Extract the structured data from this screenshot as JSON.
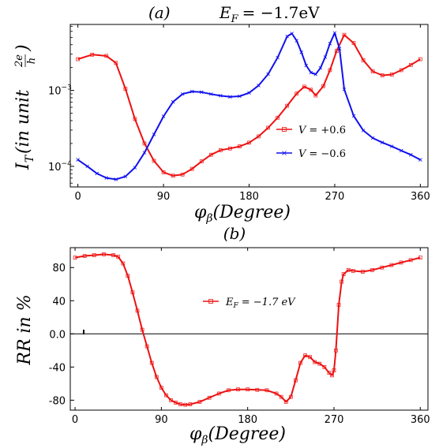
{
  "chart_data": [
    {
      "type": "line",
      "panel_label": "(a)",
      "title_lhs": "E",
      "title_lhs_sub": "F",
      "title_rhs": "= −1.7eV",
      "ylabel_main": "I",
      "ylabel_sub": "T",
      "ylabel_paren": "(in  unit",
      "ylabel_frac_num": "2e",
      "ylabel_frac_den": "h",
      "ylabel_close": ")",
      "xlabel_main": "φ",
      "xlabel_sub": "β",
      "xlabel_paren": "(Degree)",
      "y_scale": "log",
      "xlim": [
        -8,
        368
      ],
      "ylim": [
        5.35e-05,
        0.0074
      ],
      "xticks": [
        0,
        90,
        180,
        270,
        360
      ],
      "yticks": [
        {
          "value": 0.001,
          "base": "10",
          "exp": "−3"
        },
        {
          "value": 0.0001,
          "base": "10",
          "exp": "−4"
        }
      ],
      "legend_position": "center-right",
      "series": [
        {
          "name": "V = +0.6",
          "label_var": "V",
          "label_val": "= +0.6",
          "color": "#ee1111",
          "marker": "square",
          "x": [
            0,
            15,
            30,
            40,
            50,
            60,
            70,
            80,
            90,
            100,
            110,
            120,
            130,
            140,
            150,
            160,
            170,
            180,
            190,
            200,
            210,
            220,
            230,
            238,
            245,
            250,
            258,
            265,
            272,
            280,
            290,
            300,
            310,
            320,
            330,
            340,
            350,
            360
          ],
          "y": [
            0.00258,
            0.00296,
            0.00285,
            0.0023,
            0.00105,
            0.00042,
            0.0002,
            0.000118,
            8.35e-05,
            7.52e-05,
            7.8e-05,
            9.25e-05,
            0.000116,
            0.000142,
            0.000163,
            0.000172,
            0.000183,
            0.000205,
            0.000248,
            0.000322,
            0.000437,
            0.000628,
            0.000909,
            0.00112,
            0.00102,
            0.000858,
            0.00114,
            0.00185,
            0.0033,
            0.0054,
            0.0042,
            0.0025,
            0.00178,
            0.00158,
            0.00162,
            0.00185,
            0.00217,
            0.00258
          ]
        },
        {
          "name": "V = −0.6",
          "label_var": "V",
          "label_val": "= −0.6",
          "color": "#1111ee",
          "marker": "x",
          "x": [
            0,
            10,
            20,
            30,
            40,
            50,
            60,
            70,
            80,
            90,
            100,
            110,
            120,
            130,
            140,
            150,
            160,
            170,
            180,
            190,
            200,
            210,
            220,
            225,
            230,
            235,
            240,
            245,
            250,
            255,
            260,
            265,
            270,
            275,
            280,
            290,
            300,
            310,
            320,
            330,
            340,
            350,
            360
          ],
          "y": [
            0.000122,
            0.0001,
            8.05e-05,
            7.03e-05,
            6.73e-05,
            7.35e-05,
            9.62e-05,
            0.000151,
            0.000263,
            0.000455,
            0.000706,
            0.000896,
            0.000966,
            0.000949,
            0.000895,
            0.000851,
            0.000822,
            0.000838,
            0.00093,
            0.00116,
            0.00164,
            0.00271,
            0.00515,
            0.00562,
            0.00452,
            0.00318,
            0.00213,
            0.00172,
            0.00163,
            0.00198,
            0.00275,
            0.00415,
            0.00572,
            0.00356,
            0.00103,
            0.000462,
            0.000297,
            0.000236,
            0.000206,
            0.000183,
            0.000161,
            0.000142,
            0.000122
          ]
        }
      ]
    },
    {
      "type": "line",
      "panel_label": "(b)",
      "ylabel": "RR  in  %",
      "xlabel_main": "φ",
      "xlabel_sub": "β",
      "xlabel_paren": "(Degree)",
      "xlim": [
        -5,
        368
      ],
      "ylim": [
        -92,
        104
      ],
      "xticks": [
        0,
        90,
        180,
        270,
        360
      ],
      "yticks": [
        {
          "value": 80,
          "label": "80"
        },
        {
          "value": 40,
          "label": "40"
        },
        {
          "value": 0,
          "label": "0.0"
        },
        {
          "value": -40,
          "label": "-40"
        },
        {
          "value": -80,
          "label": "-80"
        }
      ],
      "zero_line": true,
      "legend_position": "center",
      "series": [
        {
          "name": "E_F = −1.7 eV",
          "label_var": "E",
          "label_sub": "F",
          "label_val": "= −1.7  eV",
          "color": "#ee1111",
          "marker": "square",
          "x": [
            0,
            10,
            20,
            30,
            40,
            45,
            50,
            55,
            60,
            65,
            70,
            75,
            80,
            85,
            90,
            95,
            100,
            105,
            110,
            115,
            120,
            130,
            140,
            150,
            160,
            170,
            180,
            190,
            200,
            210,
            215,
            220,
            225,
            230,
            235,
            240,
            245,
            250,
            255,
            260,
            265,
            268,
            270,
            272,
            275,
            278,
            280,
            285,
            290,
            300,
            310,
            320,
            330,
            340,
            350,
            360
          ],
          "y": [
            92,
            94,
            95,
            96,
            95,
            93,
            85,
            70,
            50,
            28,
            5,
            -15,
            -35,
            -52,
            -65,
            -74,
            -80,
            -83,
            -85,
            -85.5,
            -85,
            -82,
            -77,
            -72,
            -68,
            -67,
            -67,
            -67.5,
            -68,
            -72,
            -76,
            -82,
            -76,
            -56,
            -35,
            -26,
            -28,
            -34,
            -36,
            -40,
            -47,
            -50,
            -44,
            -20,
            35,
            63,
            72,
            77,
            76,
            75,
            77,
            80,
            83,
            86,
            89,
            92
          ]
        }
      ]
    }
  ]
}
